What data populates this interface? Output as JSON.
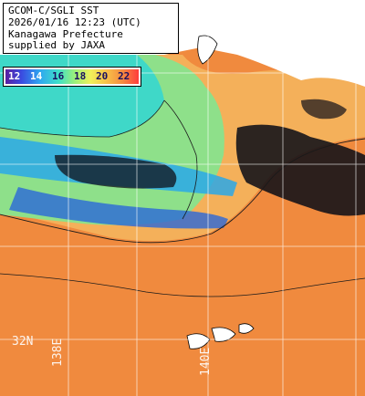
{
  "header": {
    "sensor": "GCOM-C/SGLI SST",
    "datetime": "2026/01/16 12:23 (UTC)",
    "region": "Kanagawa Prefecture",
    "credit": "supplied by JAXA"
  },
  "legend": {
    "ticks": [
      "12",
      "14",
      "16",
      "18",
      "20",
      "22"
    ],
    "colors": [
      "#5a1ea0",
      "#3a4be0",
      "#2fa8f0",
      "#3fe0c8",
      "#9cf07a",
      "#f0f05a",
      "#f8c048",
      "#f48a40",
      "#ff3c3c"
    ]
  },
  "grid_labels": {
    "lat": "32N",
    "lon_a": "138E",
    "lon_b": "140E"
  },
  "colors": {
    "warm_sea": "#f08a3e",
    "mid_sea": "#f4c064",
    "cool_sea": "#4ad8c0",
    "cloud": "#101018",
    "land": "#ffffff",
    "grid": "#ffffff"
  }
}
